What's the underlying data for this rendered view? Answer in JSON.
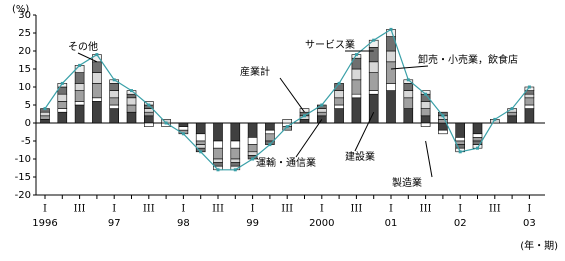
{
  "chart_data": {
    "type": "bar",
    "y_unit": "(%)",
    "x_unit": "(年・期)",
    "categories": [
      "I",
      null,
      "III",
      null,
      "I",
      null,
      "III",
      null,
      "I",
      null,
      "III",
      null,
      "I",
      null,
      "III",
      null,
      "I",
      null,
      "III",
      null,
      "I",
      null,
      "III",
      null,
      "I",
      null,
      "III",
      null,
      "I"
    ],
    "year_labels": [
      "1996",
      null,
      null,
      null,
      "97",
      null,
      null,
      null,
      "98",
      null,
      null,
      null,
      "99",
      null,
      null,
      null,
      "2000",
      null,
      null,
      null,
      "01",
      null,
      null,
      null,
      "02",
      null,
      null,
      null,
      "03"
    ],
    "ylim": [
      -20,
      30
    ],
    "yticks": [
      -20,
      -15,
      -10,
      -5,
      0,
      5,
      10,
      15,
      20,
      25,
      30
    ],
    "series": [
      {
        "name": "製造業",
        "color": "#404040",
        "values": [
          1,
          3,
          5,
          6,
          4,
          3,
          2,
          0,
          -1,
          -3,
          -5,
          -5,
          -4,
          -2,
          0,
          1,
          2,
          4,
          7,
          8,
          9,
          4,
          2,
          -2,
          -4,
          -3,
          0,
          2,
          4
        ]
      },
      {
        "name": "建設業",
        "color": "#ffffff",
        "values": [
          0,
          1,
          1,
          1,
          1,
          0,
          -1,
          -1,
          -1,
          -2,
          -2,
          -2,
          -2,
          -1,
          -1,
          0,
          0,
          1,
          1,
          1,
          2,
          0,
          -1,
          -1,
          -1,
          -1,
          0,
          0,
          1
        ]
      },
      {
        "name": "卸売・小売業，飲食店",
        "color": "#a0a0a0",
        "values": [
          1,
          2,
          3,
          4,
          2,
          2,
          1,
          0,
          -1,
          -1,
          -3,
          -3,
          -2,
          -2,
          -1,
          0,
          1,
          2,
          4,
          5,
          6,
          3,
          2,
          1,
          -1,
          -1,
          0,
          1,
          2
        ]
      },
      {
        "name": "運輸・通信業",
        "color": "#d8d8d8",
        "values": [
          1,
          2,
          2,
          3,
          2,
          2,
          1,
          1,
          0,
          -1,
          -1,
          -1,
          -1,
          0,
          0,
          1,
          1,
          2,
          3,
          3,
          3,
          2,
          2,
          1,
          0,
          0,
          1,
          1,
          1
        ]
      },
      {
        "name": "サービス業",
        "color": "#707070",
        "values": [
          1,
          2,
          3,
          3,
          2,
          1,
          1,
          0,
          0,
          -1,
          -1,
          -1,
          -1,
          -1,
          0,
          1,
          1,
          2,
          3,
          4,
          4,
          2,
          2,
          1,
          -1,
          -1,
          0,
          0,
          1
        ]
      },
      {
        "name": "その他",
        "color": "#f0f0f0",
        "values": [
          0,
          1,
          2,
          2,
          1,
          1,
          1,
          0,
          0,
          0,
          -1,
          -1,
          0,
          0,
          1,
          1,
          0,
          0,
          1,
          2,
          2,
          1,
          1,
          0,
          -1,
          -1,
          0,
          0,
          1
        ]
      },
      {
        "name": "産業計",
        "color": "#3aa0a8",
        "type": "line",
        "values": [
          4,
          11,
          16,
          19,
          12,
          9,
          5,
          0,
          -3,
          -8,
          -13,
          -13,
          -10,
          -6,
          -1,
          2,
          5,
          11,
          19,
          23,
          26,
          12,
          8,
          2,
          -8,
          -7,
          1,
          4,
          10
        ]
      }
    ]
  }
}
